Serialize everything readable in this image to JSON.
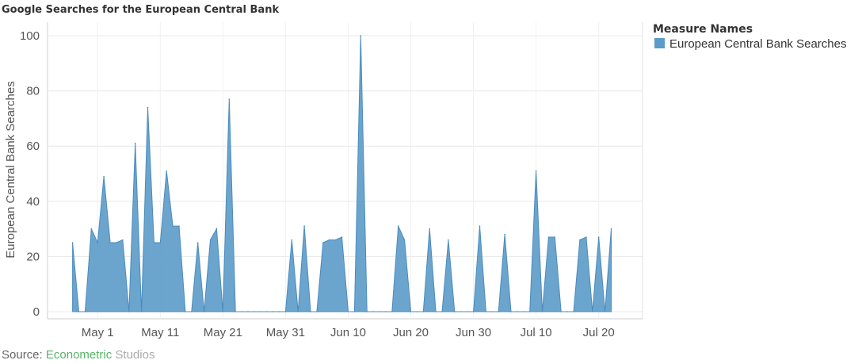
{
  "source": {
    "prefix": "Source: ",
    "brand_part1": "Econometric",
    "brand_part2": " Studios"
  },
  "colors": {
    "series": "#5b9bc9",
    "series_stroke": "#4a8bbd",
    "brand_green": "#59b268",
    "brand_gray": "#aaaaaa",
    "grid": "#e8e8e8"
  },
  "chart_data": {
    "type": "area",
    "title": "Google Searches for the European Central Bank",
    "xlabel": "",
    "ylabel": "European Central Bank Searches",
    "ylim": [
      0,
      100
    ],
    "yticks": [
      0,
      20,
      40,
      60,
      80,
      100
    ],
    "xlim": [
      "2013-04-23",
      "2013-07-27"
    ],
    "xtick_labels": [
      "May 1",
      "May 11",
      "May 21",
      "May 31",
      "Jun 10",
      "Jun 20",
      "Jun 30",
      "Jul 10",
      "Jul 20"
    ],
    "xtick_dates": [
      "2013-05-01",
      "2013-05-11",
      "2013-05-21",
      "2013-05-31",
      "2013-06-10",
      "2013-06-20",
      "2013-06-30",
      "2013-07-10",
      "2013-07-20"
    ],
    "legend": {
      "title": "Measure Names",
      "position": "right"
    },
    "series": [
      {
        "name": "European Central Bank Searches",
        "x": [
          "2013-04-27",
          "2013-04-28",
          "2013-04-29",
          "2013-04-30",
          "2013-05-01",
          "2013-05-02",
          "2013-05-03",
          "2013-05-04",
          "2013-05-05",
          "2013-05-06",
          "2013-05-07",
          "2013-05-08",
          "2013-05-09",
          "2013-05-10",
          "2013-05-11",
          "2013-05-12",
          "2013-05-13",
          "2013-05-14",
          "2013-05-15",
          "2013-05-16",
          "2013-05-17",
          "2013-05-18",
          "2013-05-19",
          "2013-05-20",
          "2013-05-21",
          "2013-05-22",
          "2013-05-23",
          "2013-05-24",
          "2013-05-25",
          "2013-05-26",
          "2013-05-27",
          "2013-05-28",
          "2013-05-29",
          "2013-05-30",
          "2013-05-31",
          "2013-06-01",
          "2013-06-02",
          "2013-06-03",
          "2013-06-04",
          "2013-06-05",
          "2013-06-06",
          "2013-06-07",
          "2013-06-08",
          "2013-06-09",
          "2013-06-10",
          "2013-06-11",
          "2013-06-12",
          "2013-06-13",
          "2013-06-14",
          "2013-06-15",
          "2013-06-16",
          "2013-06-17",
          "2013-06-18",
          "2013-06-19",
          "2013-06-20",
          "2013-06-21",
          "2013-06-22",
          "2013-06-23",
          "2013-06-24",
          "2013-06-25",
          "2013-06-26",
          "2013-06-27",
          "2013-06-28",
          "2013-06-29",
          "2013-06-30",
          "2013-07-01",
          "2013-07-02",
          "2013-07-03",
          "2013-07-04",
          "2013-07-05",
          "2013-07-06",
          "2013-07-07",
          "2013-07-08",
          "2013-07-09",
          "2013-07-10",
          "2013-07-11",
          "2013-07-12",
          "2013-07-13",
          "2013-07-14",
          "2013-07-15",
          "2013-07-16",
          "2013-07-17",
          "2013-07-18",
          "2013-07-19",
          "2013-07-20",
          "2013-07-21",
          "2013-07-22"
        ],
        "values": [
          25,
          0,
          0,
          30,
          25,
          49,
          25,
          25,
          26,
          0,
          61,
          0,
          74,
          25,
          25,
          51,
          31,
          31,
          0,
          0,
          25,
          0,
          26,
          30,
          0,
          77,
          0,
          0,
          0,
          0,
          0,
          0,
          0,
          0,
          0,
          26,
          0,
          31,
          0,
          0,
          25,
          26,
          26,
          27,
          0,
          0,
          100,
          0,
          0,
          0,
          0,
          0,
          31,
          26,
          0,
          0,
          0,
          30,
          0,
          0,
          26,
          0,
          0,
          0,
          0,
          31,
          0,
          0,
          0,
          28,
          0,
          0,
          0,
          0,
          51,
          0,
          27,
          27,
          0,
          0,
          0,
          26,
          27,
          0,
          27,
          0,
          30
        ]
      }
    ]
  }
}
